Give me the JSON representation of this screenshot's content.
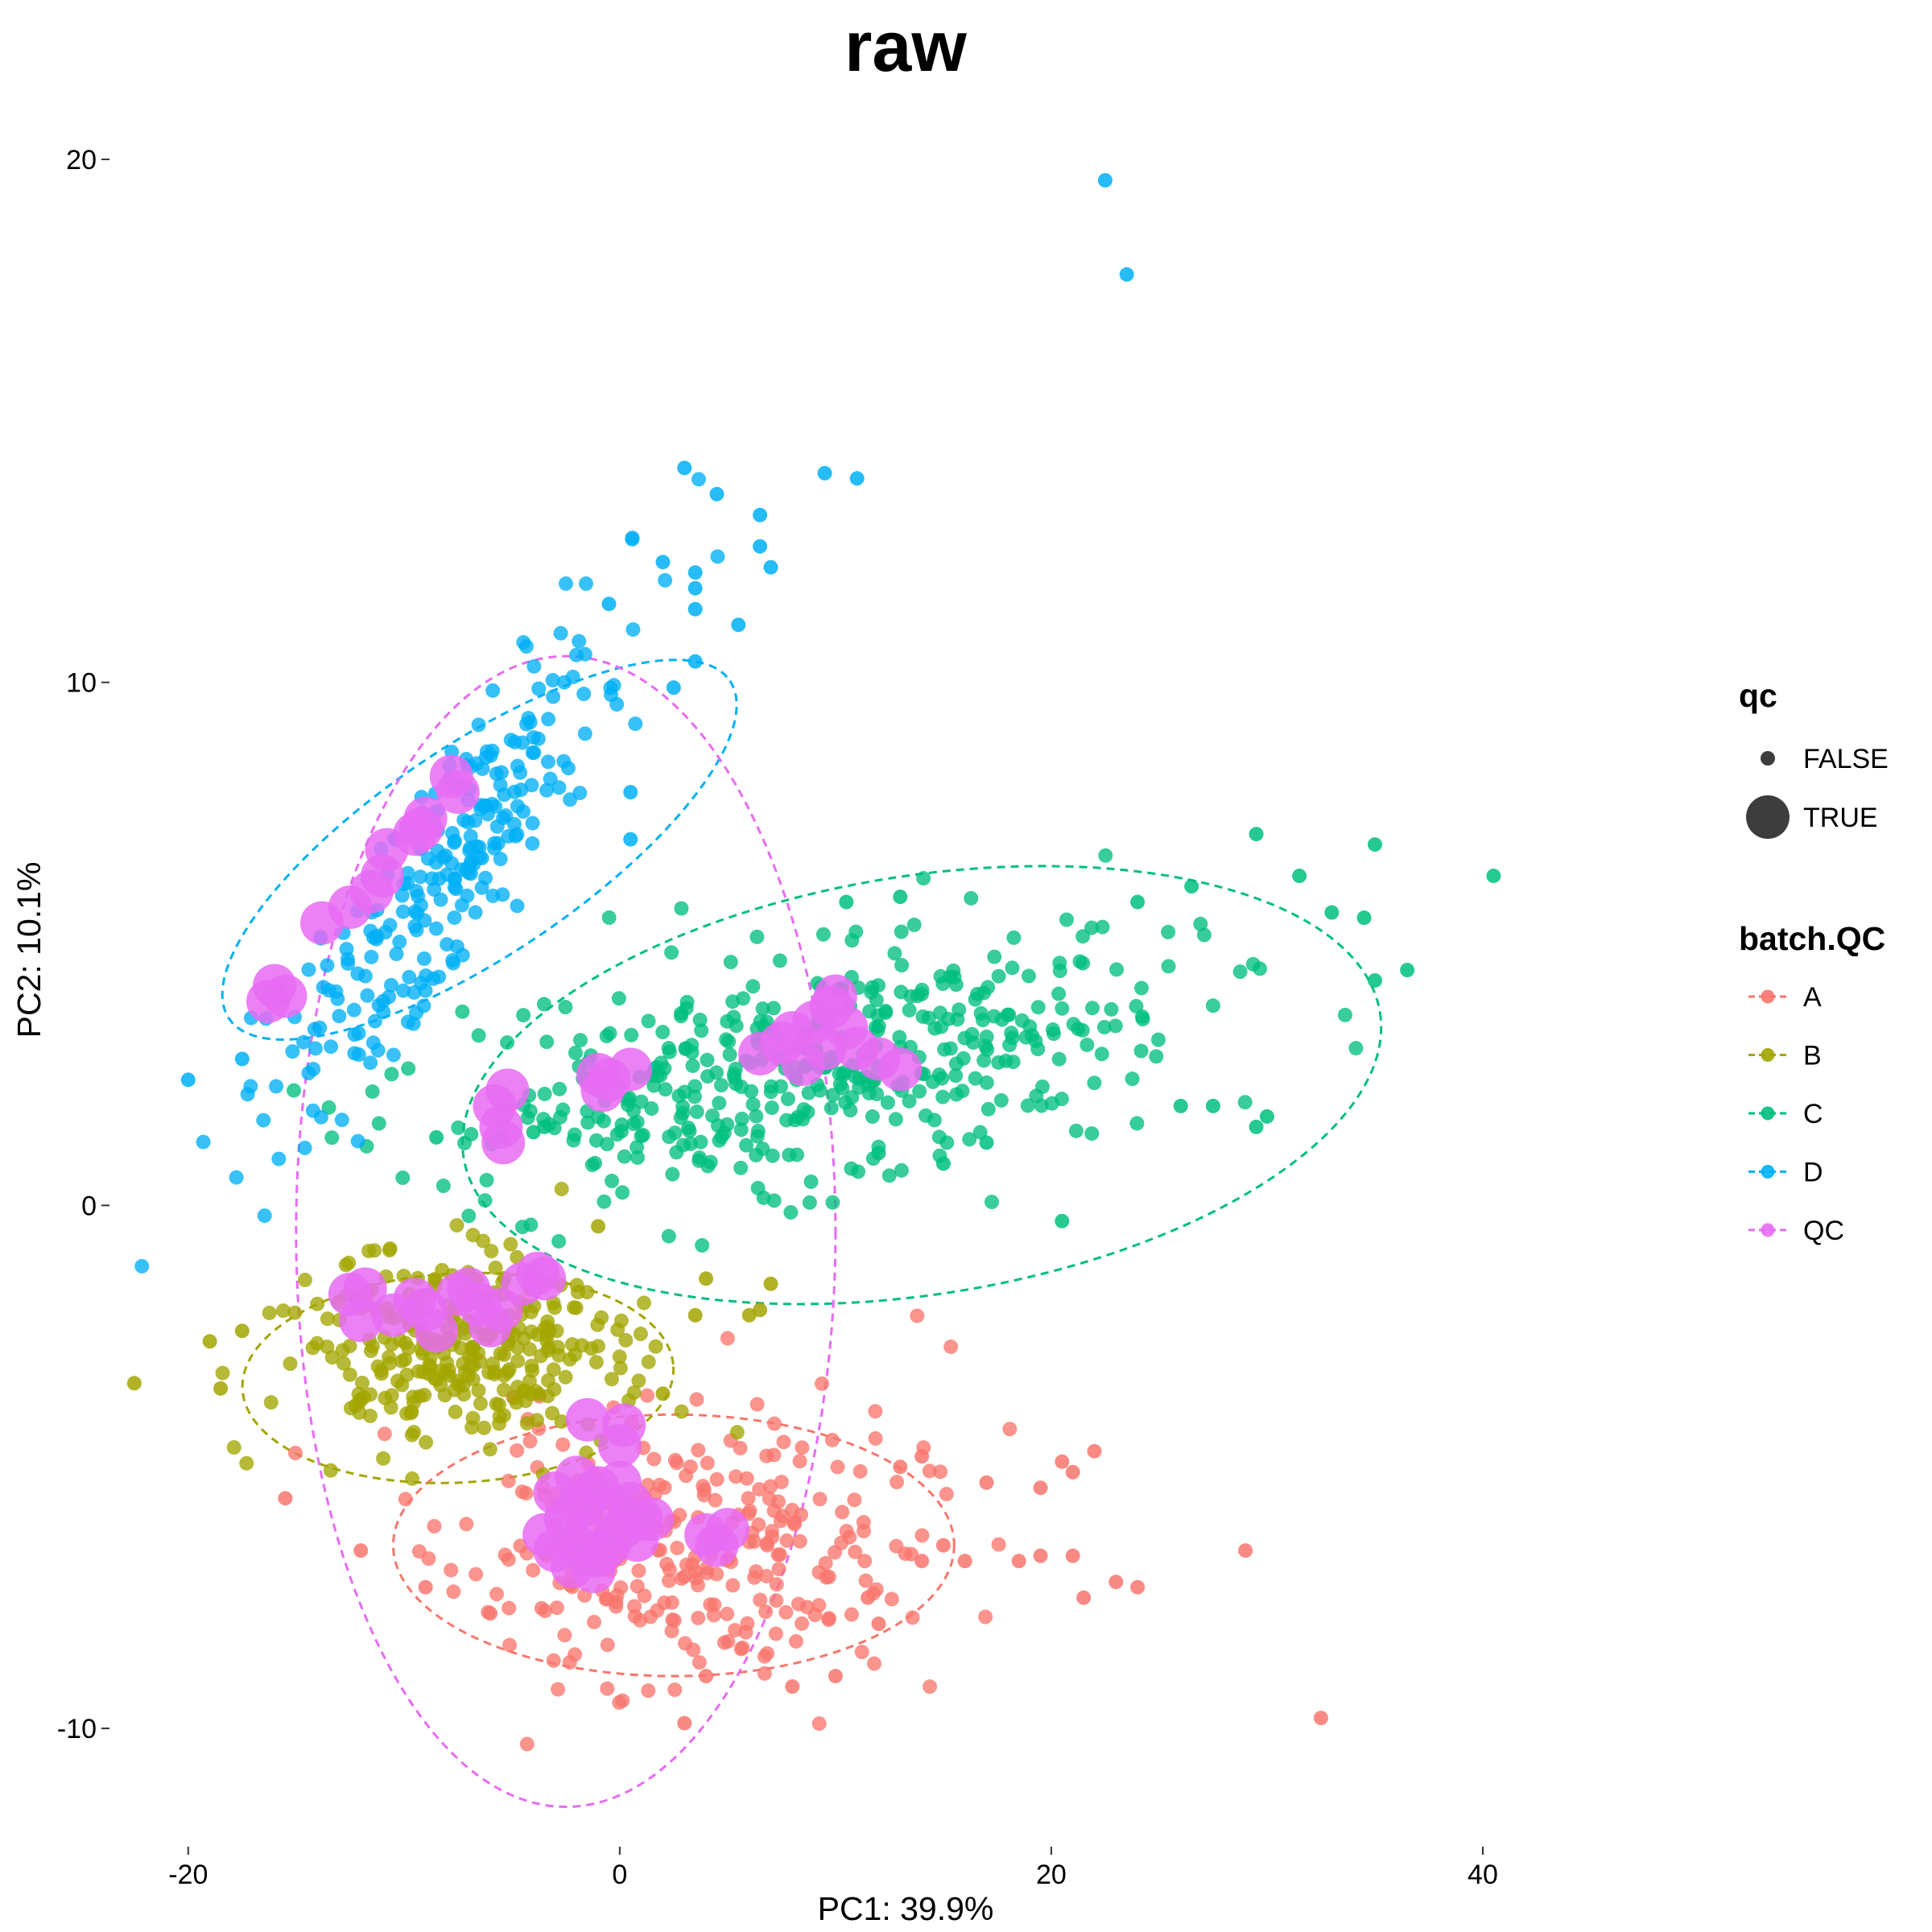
{
  "chart_data": {
    "type": "scatter",
    "title": "raw",
    "xlabel": "PC1: 39.9%",
    "ylabel": "PC2: 10.1%",
    "xlim": [
      -23.5,
      50
    ],
    "ylim": [
      -12.2,
      21.2
    ],
    "xticks": [
      -20,
      0,
      20,
      40
    ],
    "yticks": [
      -10,
      0,
      10,
      20
    ],
    "grid": false,
    "legend_position": "right",
    "legend": {
      "size_title": "qc",
      "size_entries": [
        {
          "label": "FALSE"
        },
        {
          "label": "TRUE"
        }
      ],
      "color_title": "batch.QC",
      "color_entries": [
        {
          "label": "A",
          "color": "#F8766D"
        },
        {
          "label": "B",
          "color": "#A3A500"
        },
        {
          "label": "C",
          "color": "#00BF7D"
        },
        {
          "label": "D",
          "color": "#00B0F6"
        },
        {
          "label": "QC",
          "color": "#E76BF3"
        }
      ]
    },
    "ellipses": [
      {
        "series": "A",
        "cx": 2.5,
        "cy": -6.5,
        "rx": 13,
        "ry": 2.5,
        "angle": 0
      },
      {
        "series": "B",
        "cx": -7.5,
        "cy": -3.3,
        "rx": 10,
        "ry": 2.0,
        "angle": 3
      },
      {
        "series": "C",
        "cx": 14,
        "cy": 2.3,
        "rx": 21.5,
        "ry": 4.0,
        "angle": 9
      },
      {
        "series": "D",
        "cx": -6.5,
        "cy": 6.8,
        "rx": 14,
        "ry": 2.0,
        "angle": 34
      },
      {
        "series": "QC",
        "cx": -2.5,
        "cy": -0.5,
        "rx": 12.5,
        "ry": 11.0,
        "angle": 0
      }
    ],
    "series": [
      {
        "name": "A",
        "color": "#F8766D",
        "outliers": [
          [
            -15.5,
            -5.6
          ],
          [
            32.5,
            -9.8
          ],
          [
            3,
            -9.9
          ],
          [
            29,
            -6.6
          ],
          [
            17,
            -5.3
          ],
          [
            19.5,
            -6.7
          ],
          [
            18.5,
            -6.8
          ],
          [
            21,
            -6.7
          ],
          [
            23,
            -7.2
          ],
          [
            24,
            -7.3
          ],
          [
            21.5,
            -7.5
          ],
          [
            19.5,
            -5.4
          ],
          [
            21,
            -5.1
          ],
          [
            22,
            -4.7
          ],
          [
            20.5,
            -4.9
          ],
          [
            11.5,
            -7.5
          ],
          [
            12,
            -8.0
          ],
          [
            14,
            -6.8
          ],
          [
            15,
            -6.5
          ],
          [
            16,
            -6.8
          ],
          [
            10,
            -9
          ],
          [
            8,
            -9.2
          ],
          [
            4,
            -9
          ],
          [
            -12,
            -6.6
          ],
          [
            -9,
            -7.3
          ],
          [
            -6,
            -7.8
          ],
          [
            13,
            -5
          ],
          [
            14,
            -4.8
          ]
        ],
        "cluster": {
          "cx": 3,
          "cy": -6.6,
          "sx": 5.2,
          "sy": 1.3,
          "n": 300,
          "seed": 11
        }
      },
      {
        "name": "B",
        "color": "#A3A500",
        "outliers": [
          [
            -22.5,
            -3.4
          ],
          [
            -18.5,
            -3.5
          ],
          [
            -17.5,
            -2.4
          ],
          [
            6.5,
            -2.0
          ],
          [
            7,
            -1.5
          ],
          [
            4,
            -1.4
          ],
          [
            2,
            -3.6
          ],
          [
            -19,
            -2.6
          ],
          [
            3.5,
            -2.1
          ],
          [
            -1,
            -0.4
          ],
          [
            6,
            -2.1
          ]
        ],
        "cluster": {
          "cx": -7.5,
          "cy": -2.8,
          "sx": 3.8,
          "sy": 0.95,
          "n": 300,
          "seed": 23
        }
      },
      {
        "name": "C",
        "color": "#00BF7D",
        "outliers": [
          [
            40.5,
            6.3
          ],
          [
            29.5,
            7.1
          ],
          [
            35,
            6.9
          ],
          [
            33,
            5.6
          ],
          [
            31.5,
            6.3
          ],
          [
            34.5,
            5.5
          ],
          [
            36.5,
            4.5
          ],
          [
            35,
            4.3
          ],
          [
            24,
            5.8
          ],
          [
            26.5,
            6.1
          ],
          [
            13,
            5.9
          ],
          [
            10.5,
            5.8
          ],
          [
            -4,
            1.4
          ],
          [
            -5.5,
            1.3
          ],
          [
            -3.5,
            1.5
          ],
          [
            -8.5,
            1.3
          ],
          [
            20.5,
            -0.3
          ],
          [
            26,
            1.9
          ],
          [
            27.5,
            1.9
          ],
          [
            30,
            1.7
          ],
          [
            29.5,
            1.5
          ],
          [
            17,
            1.2
          ],
          [
            15,
            0.8
          ],
          [
            12,
            1.0
          ]
        ],
        "cluster": {
          "cx": 9.5,
          "cy": 2.7,
          "sx": 8.5,
          "sy": 1.25,
          "rho": 0.45,
          "n": 440,
          "seed": 37
        }
      },
      {
        "name": "D",
        "color": "#00B0F6",
        "outliers": [
          [
            22.5,
            19.6
          ],
          [
            23.5,
            17.8
          ],
          [
            3,
            14.1
          ],
          [
            9.5,
            14.0
          ],
          [
            11,
            13.9
          ],
          [
            4.5,
            13.6
          ],
          [
            6.5,
            13.2
          ],
          [
            6.5,
            12.6
          ],
          [
            7,
            12.2
          ],
          [
            3.5,
            12.1
          ],
          [
            2,
            12.3
          ],
          [
            3.5,
            11.8
          ],
          [
            3.5,
            11.4
          ],
          [
            5.5,
            11.1
          ],
          [
            3.5,
            10.4
          ],
          [
            2.5,
            9.9
          ],
          [
            0.5,
            7.0
          ],
          [
            0.5,
            7.9
          ],
          [
            -20,
            2.4
          ],
          [
            -17.5,
            2.8
          ],
          [
            -0.5,
            11.5
          ]
        ],
        "cluster": {
          "cx": -8.5,
          "cy": 6.2,
          "sx": 4.0,
          "sy": 2.3,
          "rho": 0.88,
          "n": 260,
          "seed": 53
        }
      }
    ],
    "qc_points": [
      [
        -16,
        4.2
      ],
      [
        -15.5,
        4.0
      ],
      [
        -16.3,
        3.9
      ],
      [
        -13.8,
        5.4
      ],
      [
        -12.5,
        5.7
      ],
      [
        -11.5,
        6.0
      ],
      [
        -11,
        6.3
      ],
      [
        -10.8,
        6.8
      ],
      [
        -9.5,
        7.1
      ],
      [
        -9,
        7.4
      ],
      [
        -9.2,
        7.2
      ],
      [
        -7.5,
        7.9
      ],
      [
        -7.8,
        8.2
      ],
      [
        -5.8,
        1.9
      ],
      [
        -5.5,
        1.5
      ],
      [
        -5.2,
        2.2
      ],
      [
        -5.4,
        1.2
      ],
      [
        -1,
        2.5
      ],
      [
        -0.5,
        2.4
      ],
      [
        0.5,
        2.6
      ],
      [
        -0.8,
        2.2
      ],
      [
        6.5,
        2.9
      ],
      [
        7.5,
        3.1
      ],
      [
        8,
        3.3
      ],
      [
        9,
        3.5
      ],
      [
        9.8,
        3.8
      ],
      [
        10,
        4.0
      ],
      [
        10.5,
        3.4
      ],
      [
        11,
        3.0
      ],
      [
        12,
        2.8
      ],
      [
        13,
        2.6
      ],
      [
        9.5,
        3.0
      ],
      [
        8.5,
        2.7
      ],
      [
        -12.5,
        -1.7
      ],
      [
        -11.8,
        -1.6
      ],
      [
        -12,
        -2.2
      ],
      [
        -10.5,
        -2.1
      ],
      [
        -9.5,
        -1.8
      ],
      [
        -9,
        -2.0
      ],
      [
        -8.5,
        -2.4
      ],
      [
        -7.5,
        -1.7
      ],
      [
        -7,
        -1.6
      ],
      [
        -6.5,
        -1.9
      ],
      [
        -6,
        -2.3
      ],
      [
        -5.5,
        -2.0
      ],
      [
        -4.5,
        -1.5
      ],
      [
        -3.5,
        -1.4
      ],
      [
        -3.8,
        -1.3
      ],
      [
        -1.5,
        -4.1
      ],
      [
        0.2,
        -4.2
      ],
      [
        0,
        -4.6
      ],
      [
        -2,
        -5.2
      ],
      [
        -1.5,
        -5.6
      ],
      [
        -1,
        -5.4
      ],
      [
        -0.5,
        -5.8
      ],
      [
        0,
        -5.3
      ],
      [
        0.5,
        -5.7
      ],
      [
        1,
        -6.0
      ],
      [
        -2.5,
        -6.0
      ],
      [
        -2,
        -6.5
      ],
      [
        -1.5,
        -6.3
      ],
      [
        -1,
        -6.7
      ],
      [
        -0.5,
        -6.5
      ],
      [
        0,
        -6.2
      ],
      [
        -3.5,
        -6.3
      ],
      [
        -3,
        -6.6
      ],
      [
        -2.2,
        -6.9
      ],
      [
        -1.2,
        -7.0
      ],
      [
        -2,
        -5.8
      ],
      [
        0.8,
        -6.4
      ],
      [
        1.5,
        -6.0
      ],
      [
        -3,
        -5.5
      ],
      [
        4,
        -6.3
      ],
      [
        4.5,
        -6.5
      ],
      [
        5,
        -6.2
      ]
    ]
  }
}
